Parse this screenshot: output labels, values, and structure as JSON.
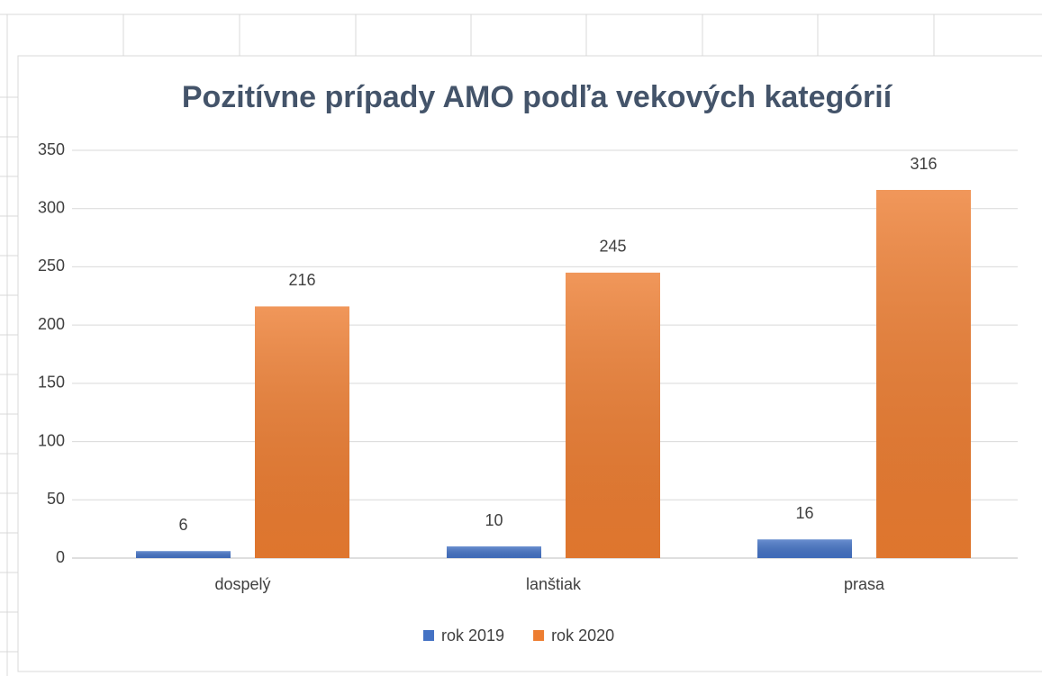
{
  "chart_data": {
    "type": "bar",
    "title": "Pozitívne prípady AMO podľa vekových kategórií",
    "categories": [
      "dospelý",
      "lanštiak",
      "prasa"
    ],
    "series": [
      {
        "name": "rok 2019",
        "color": "#4472c4",
        "values": [
          6,
          10,
          16
        ]
      },
      {
        "name": "rok 2020",
        "color": "#ed7d31",
        "values": [
          216,
          245,
          316
        ]
      }
    ],
    "ylim": [
      0,
      350
    ],
    "yticks": [
      0,
      50,
      100,
      150,
      200,
      250,
      300,
      350
    ],
    "grid": true,
    "legend": "bottom",
    "data_labels": true
  }
}
